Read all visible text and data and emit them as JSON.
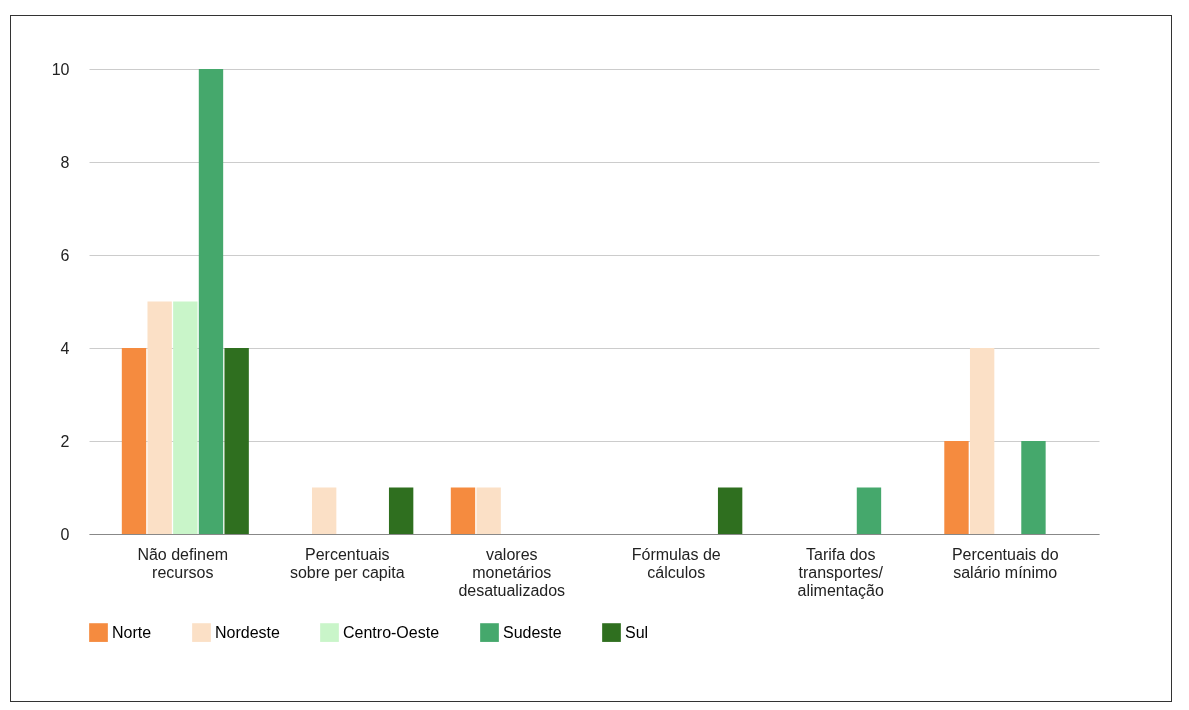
{
  "chart_data": {
    "type": "bar",
    "categories": [
      "Não definem recursos",
      "Percentuais sobre per capita",
      "valores monetários desatualizados",
      "Fórmulas de cálculos",
      "Tarifa dos transportes/ alimentação",
      "Percentuais do salário mínimo"
    ],
    "series": [
      {
        "name": "Norte",
        "color": "#f58b3f",
        "values": [
          4,
          0,
          1,
          0,
          0,
          2
        ]
      },
      {
        "name": "Nordeste",
        "color": "#fbe0c6",
        "values": [
          5,
          1,
          1,
          0,
          0,
          4
        ]
      },
      {
        "name": "Centro-Oeste",
        "color": "#c9f5c9",
        "values": [
          5,
          0,
          0,
          0,
          0,
          0
        ]
      },
      {
        "name": "Sudeste",
        "color": "#45a86c",
        "values": [
          10,
          0,
          0,
          0,
          1,
          2
        ]
      },
      {
        "name": "Sul",
        "color": "#2f6f1f",
        "values": [
          4,
          1,
          0,
          1,
          0,
          0
        ]
      }
    ],
    "ylim": [
      0,
      10
    ],
    "yticks": [
      0,
      2,
      4,
      6,
      8,
      10
    ],
    "grid": "y",
    "legend": "bottom"
  }
}
